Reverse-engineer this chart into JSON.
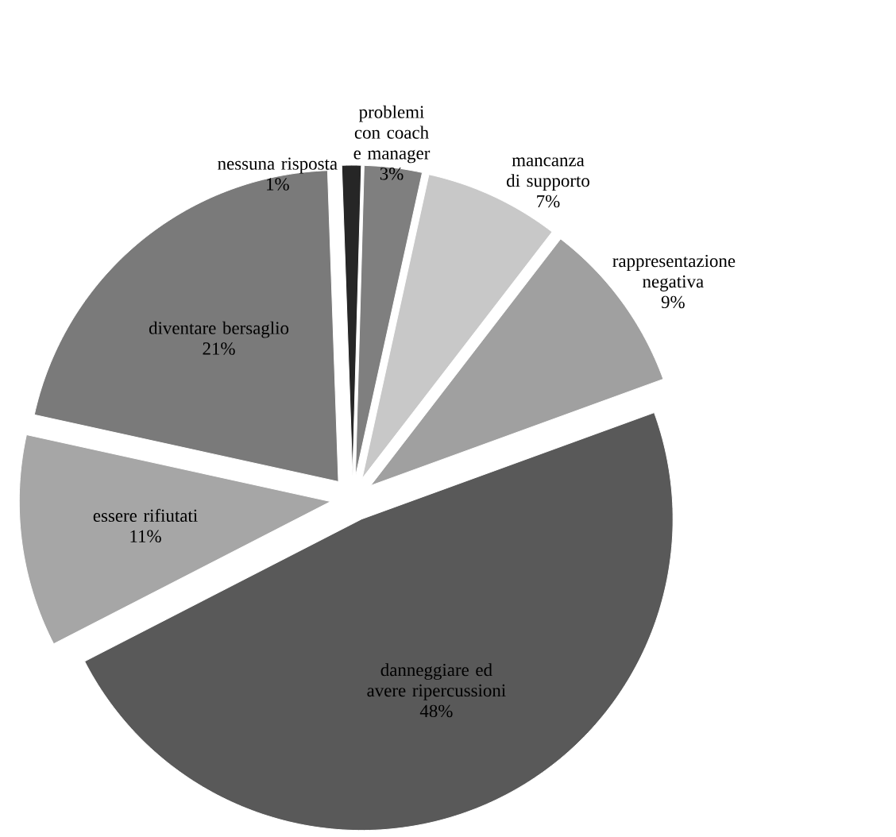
{
  "chart_data": {
    "type": "pie",
    "categories": [
      "nessuna risposta",
      "problemi con coach e manager",
      "mancanza di supporto",
      "rappresentazione negativa",
      "danneggiare ed avere ripercussioni",
      "essere rifiutati",
      "diventare bersaglio"
    ],
    "values": [
      1,
      3,
      7,
      9,
      48,
      11,
      21
    ],
    "colors": [
      "#262626",
      "#7f7f7f",
      "#c8c8c8",
      "#a0a0a0",
      "#595959",
      "#a6a6a6",
      "#7a7a7a"
    ],
    "value_labels": [
      "1%",
      "3%",
      "7%",
      "9%",
      "48%",
      "11%",
      "21%"
    ]
  }
}
